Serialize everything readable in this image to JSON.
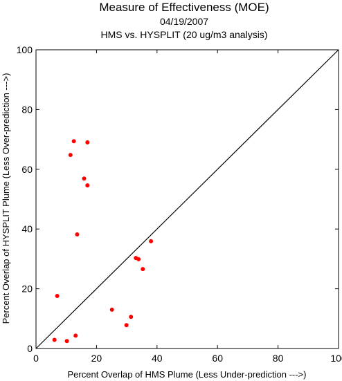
{
  "chart_data": {
    "type": "scatter",
    "title": "Measure of Effectiveness (MOE)",
    "subtitle_date": "04/19/2007",
    "subtitle_analysis": "HMS vs. HYSPLIT  (20 ug/m3 analysis)",
    "xlabel": "Percent Overlap of HMS Plume (Less Under-prediction --->)",
    "ylabel": "Percent Overlap of HYSPLIT Plume (Less Over-prediction --->)",
    "xlim": [
      0,
      100
    ],
    "ylim": [
      0,
      100
    ],
    "x_ticks": [
      0,
      20,
      40,
      60,
      80,
      100
    ],
    "y_ticks": [
      0,
      20,
      40,
      60,
      80,
      100
    ],
    "x_tick_labels": [
      "0",
      "20",
      "40",
      "60",
      "80",
      "100"
    ],
    "y_tick_labels": [
      "0",
      "20",
      "40",
      "60",
      "80",
      "100"
    ],
    "grid": false,
    "reference_line": [
      [
        0,
        0
      ],
      [
        100,
        100
      ]
    ],
    "point_color": "#ff0000",
    "series": [
      {
        "points": [
          {
            "x": 12.5,
            "y": 69.4
          },
          {
            "x": 17.0,
            "y": 69.0
          },
          {
            "x": 11.4,
            "y": 64.8
          },
          {
            "x": 15.9,
            "y": 56.9
          },
          {
            "x": 17.0,
            "y": 54.6
          },
          {
            "x": 13.6,
            "y": 38.2
          },
          {
            "x": 38.0,
            "y": 35.9
          },
          {
            "x": 33.0,
            "y": 30.3
          },
          {
            "x": 33.9,
            "y": 29.9
          },
          {
            "x": 35.3,
            "y": 26.6
          },
          {
            "x": 7.0,
            "y": 17.6
          },
          {
            "x": 25.1,
            "y": 13.0
          },
          {
            "x": 31.4,
            "y": 10.6
          },
          {
            "x": 29.9,
            "y": 7.8
          },
          {
            "x": 13.1,
            "y": 4.3
          },
          {
            "x": 6.1,
            "y": 2.9
          },
          {
            "x": 10.2,
            "y": 2.5
          }
        ]
      }
    ]
  }
}
